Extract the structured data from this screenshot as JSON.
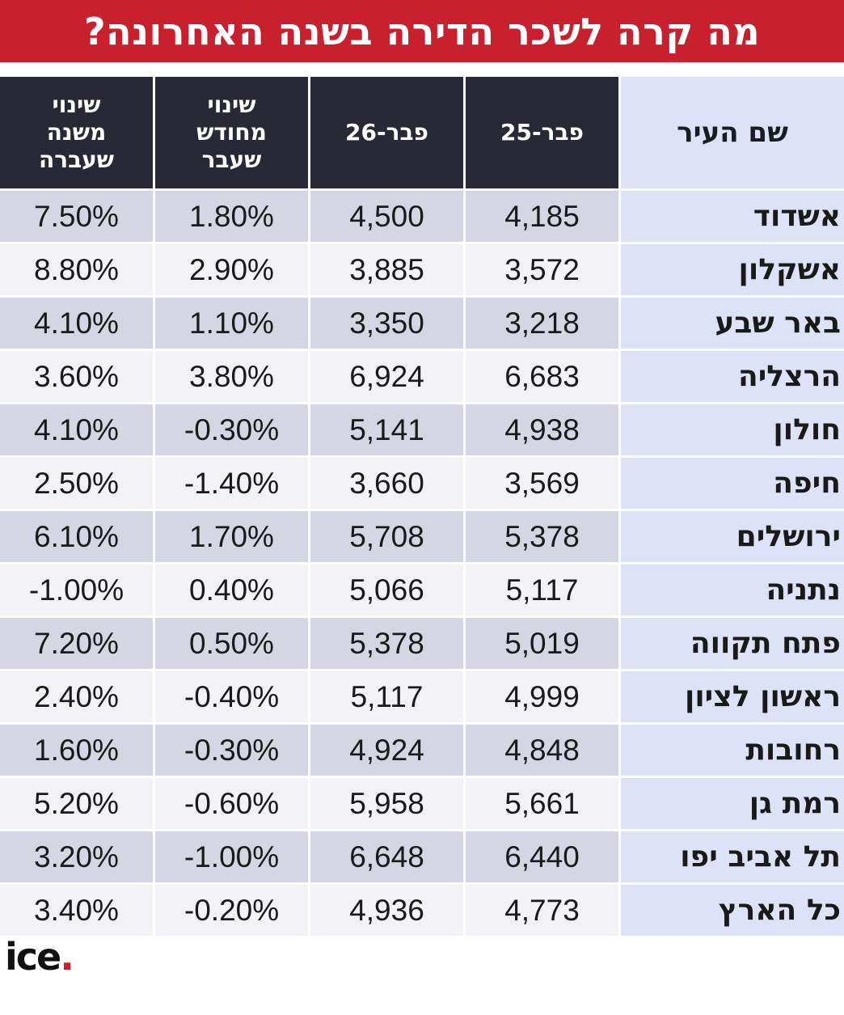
{
  "title": "מה קרה לשכר הדירה בשנה האחרונה?",
  "logo": {
    "text": "ice",
    "dot": "."
  },
  "colors": {
    "title_bg": "#c8202c",
    "header_dark": "#272a36",
    "city_col": "#dde2f6",
    "row_odd": "#d5d6e3",
    "row_even": "#f2f2f7"
  },
  "chart_data": {
    "type": "table",
    "columns": [
      "שם העיר",
      "פבר-25",
      "פבר-26",
      "שינוי\nמחודש\nשעבר",
      "שינוי\nמשנה\nשעברה"
    ],
    "rows": [
      [
        "אשדוד",
        "4,185",
        "4,500",
        "1.80%",
        "7.50%"
      ],
      [
        "אשקלון",
        "3,572",
        "3,885",
        "2.90%",
        "8.80%"
      ],
      [
        "באר שבע",
        "3,218",
        "3,350",
        "1.10%",
        "4.10%"
      ],
      [
        "הרצליה",
        "6,683",
        "6,924",
        "3.80%",
        "3.60%"
      ],
      [
        "חולון",
        "4,938",
        "5,141",
        "-0.30%",
        "4.10%"
      ],
      [
        "חיפה",
        "3,569",
        "3,660",
        "-1.40%",
        "2.50%"
      ],
      [
        "ירושלים",
        "5,378",
        "5,708",
        "1.70%",
        "6.10%"
      ],
      [
        "נתניה",
        "5,117",
        "5,066",
        "0.40%",
        "-1.00%"
      ],
      [
        "פתח תקווה",
        "5,019",
        "5,378",
        "0.50%",
        "7.20%"
      ],
      [
        "ראשון לציון",
        "4,999",
        "5,117",
        "-0.40%",
        "2.40%"
      ],
      [
        "רחובות",
        "4,848",
        "4,924",
        "-0.30%",
        "1.60%"
      ],
      [
        "רמת גן",
        "5,661",
        "5,958",
        "-0.60%",
        "5.20%"
      ],
      [
        "תל אביב יפו",
        "6,440",
        "6,648",
        "-1.00%",
        "3.20%"
      ],
      [
        "כל הארץ",
        "4,773",
        "4,936",
        "-0.20%",
        "3.40%"
      ]
    ]
  }
}
